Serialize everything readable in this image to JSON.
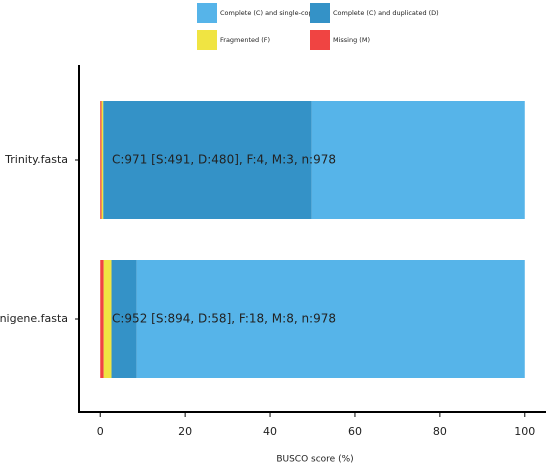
{
  "chart_data": {
    "type": "stacked-bar-horizontal",
    "xlabel": "BUSCO score (%)",
    "categories": [
      "Trinity.fasta",
      "unigene.fasta"
    ],
    "series": [
      {
        "name": "Complete (C) and single-copy (S)",
        "color": "#56B4E9",
        "values": [
          50.2,
          91.41
        ]
      },
      {
        "name": "Complete (C) and duplicated (D)",
        "color": "#3492C7",
        "values": [
          49.08,
          5.93
        ]
      },
      {
        "name": "Fragmented (F)",
        "color": "#F0E442",
        "values": [
          0.41,
          1.84
        ]
      },
      {
        "name": "Missing (M)",
        "color": "#F04442",
        "values": [
          0.31,
          0.82
        ]
      }
    ],
    "bar_labels": [
      "C:971 [S:491, D:480], F:4, M:3, n:978",
      "C:952 [S:894, D:58], F:18, M:8, n:978"
    ],
    "xlim": [
      -5,
      105
    ],
    "xticks": [
      0,
      20,
      40,
      60,
      80,
      100
    ],
    "grid": false,
    "legend": "top"
  }
}
